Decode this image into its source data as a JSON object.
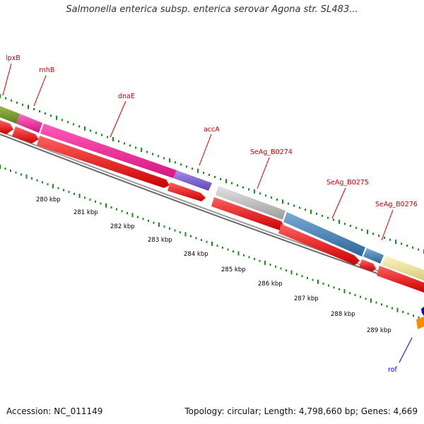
{
  "title": "Salmonella enterica subsp. enterica serovar Agona str. SL483...",
  "accession": "Accession: NC_011149",
  "summary": "Topology: circular; Length: 4,798,660 bp; Genes: 4,669",
  "gene_labels": {
    "lpxB": "lpxB",
    "rnhB": "rnhB",
    "dnaE": "dnaE",
    "accA": "accA",
    "SeAg_B0274": "SeAg_B0274",
    "SeAg_B0275": "SeAg_B0275",
    "SeAg_B0276": "SeAg_B0276",
    "rof": "rof"
  },
  "tick_labels": {
    "t280": "280 kbp",
    "t281": "281 kbp",
    "t282": "282 kbp",
    "t283": "283 kbp",
    "t284": "284 kbp",
    "t285": "285 kbp",
    "t286": "286 kbp",
    "t287": "287 kbp",
    "t288": "288 kbp",
    "t289": "289 kbp"
  },
  "colors": {
    "lpxB": "#6b8e23",
    "rnhB": "#e8289a",
    "dnaE": "#ee1d96",
    "accA": "#7b5fcf",
    "SeAg_B0274": "#bbbbbb",
    "SeAg_B0275": "#3f7fb5",
    "SeAg_B0276": "#f0e59a",
    "cds": "#ff0000",
    "backbone": "#8a8a8a",
    "label": "#cc0000",
    "rof_label": "#0000cc",
    "rof": "#ff8c00",
    "ticks": "#1a8a1a"
  }
}
